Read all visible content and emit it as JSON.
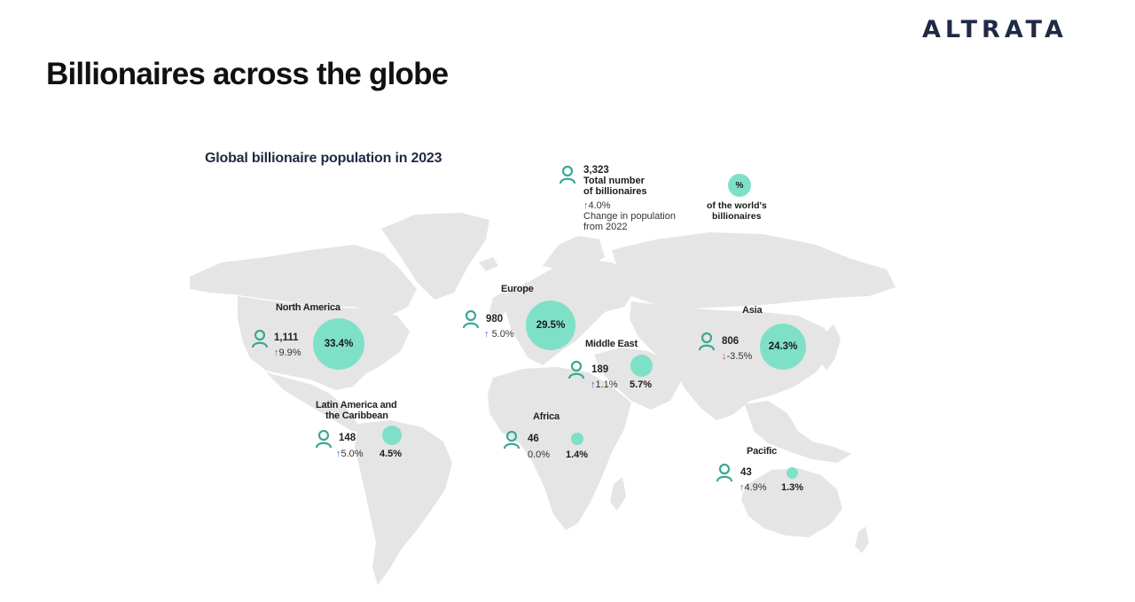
{
  "brand": {
    "logo_text": "ALTRATA"
  },
  "header": {
    "title": "Billionaires across the globe",
    "subtitle": "Global billionaire population in 2023"
  },
  "legend": {
    "total_count": "3,323",
    "total_label_line1": "Total number",
    "total_label_line2": "of billionaires",
    "change_value": "4.0%",
    "change_label_line1": "Change in population",
    "change_label_line2": "from 2022",
    "share_symbol": "%",
    "share_label_line1": "of the world's",
    "share_label_line2": "billionaires"
  },
  "colors": {
    "bubble": "#7fe0c8",
    "icon": "#3aa893",
    "land": "#e5e5e5",
    "up": "#2a6fdb",
    "down": "#e53935"
  },
  "regions": {
    "north_america": {
      "name": "North America",
      "count": "1,111",
      "change": "9.9%",
      "direction": "up",
      "share": "33.4%"
    },
    "latin_america": {
      "name_line1": "Latin America and",
      "name_line2": "the Caribbean",
      "count": "148",
      "change": "5.0%",
      "direction": "up",
      "share": "4.5%"
    },
    "europe": {
      "name": "Europe",
      "count": "980",
      "change": "5.0%",
      "direction": "up",
      "share": "29.5%"
    },
    "middle_east": {
      "name": "Middle East",
      "count": "189",
      "change": "1.1%",
      "direction": "up",
      "share": "5.7%"
    },
    "africa": {
      "name": "Africa",
      "count": "46",
      "change": "0.0%",
      "direction": "none",
      "share": "1.4%"
    },
    "asia": {
      "name": "Asia",
      "count": "806",
      "change": "-3.5%",
      "direction": "down",
      "share": "24.3%"
    },
    "pacific": {
      "name": "Pacific",
      "count": "43",
      "change": "4.9%",
      "direction": "up",
      "share": "1.3%"
    }
  },
  "glyphs": {
    "up": "↑",
    "down": "↓"
  }
}
